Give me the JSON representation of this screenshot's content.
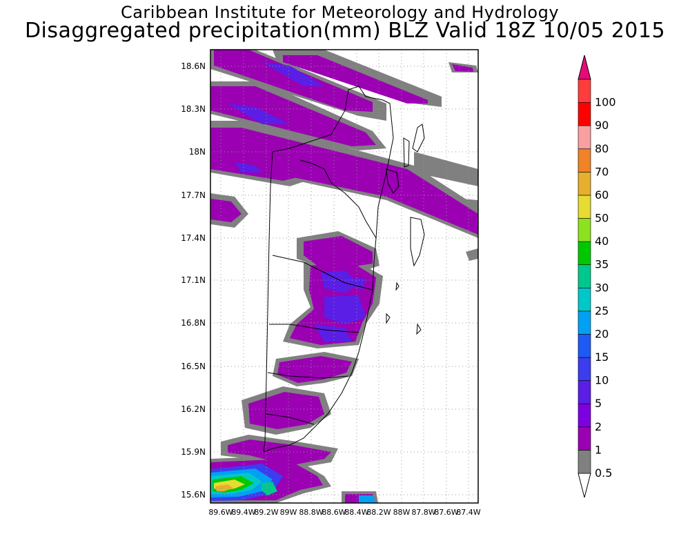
{
  "title": {
    "line1": "Caribbean Institute for Meteorology and Hydrology",
    "line2": "Disaggregated precipitation(mm) BLZ Valid 18Z 10/05 2015"
  },
  "map": {
    "lat_labels": [
      "18.6N",
      "18.3N",
      "18N",
      "17.7N",
      "17.4N",
      "17.1N",
      "16.8N",
      "16.5N",
      "16.2N",
      "15.9N",
      "15.6N"
    ],
    "lon_labels": [
      "89.6W",
      "89.4W",
      "89.2W",
      "89W",
      "88.8W",
      "88.6W",
      "88.4W",
      "88.2W",
      "88W",
      "87.8W",
      "87.6W",
      "87.4W"
    ]
  },
  "colorbar": {
    "labels": [
      "0.5",
      "1",
      "2",
      "5",
      "10",
      "15",
      "20",
      "25",
      "30",
      "35",
      "40",
      "50",
      "60",
      "70",
      "80",
      "90",
      "100"
    ],
    "colors": [
      "#808080",
      "#9b00b3",
      "#7d00e0",
      "#5a1ee6",
      "#3c3cf0",
      "#1e5af5",
      "#00a0f5",
      "#00c8c8",
      "#00c88c",
      "#00c800",
      "#8ce21e",
      "#e6dc32",
      "#e6af2d",
      "#f08228",
      "#fa9f9f",
      "#ff0000",
      "#ff3c3c",
      "#e60a78"
    ]
  }
}
